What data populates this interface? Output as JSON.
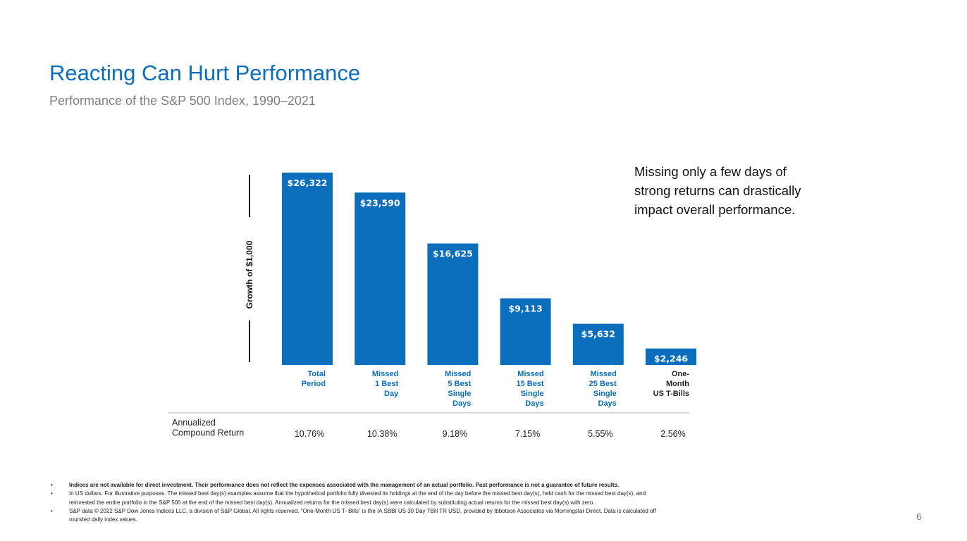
{
  "slide": {
    "title": "Reacting Can Hurt Performance",
    "subtitle": "Performance of the S&P 500 Index, 1990–2021",
    "callout": "Missing only a few days of strong returns can drastically impact overall performance.",
    "page_number": "6"
  },
  "chart_data": {
    "type": "bar",
    "title": "",
    "ylabel": "Growth of $1,000",
    "ylim": [
      0,
      27000
    ],
    "grid": false,
    "categories": [
      [
        "Total",
        "Period"
      ],
      [
        "Missed",
        "1 Best",
        "Day"
      ],
      [
        "Missed",
        "5 Best",
        "Single",
        "Days"
      ],
      [
        "Missed",
        "15 Best",
        "Single",
        "Days"
      ],
      [
        "Missed",
        "25 Best",
        "Single",
        "Days"
      ],
      [
        "One-",
        "Month",
        "US T-Bills"
      ]
    ],
    "values": [
      26322,
      23590,
      16625,
      9113,
      5632,
      2246
    ],
    "value_labels": [
      "$26,322",
      "$23,590",
      "$16,625",
      "$9,113",
      "$5,632",
      "$2,246"
    ],
    "row_label": [
      "Annualized",
      "Compound Return"
    ],
    "annualized_returns": [
      "10.76%",
      "10.38%",
      "9.18%",
      "7.15%",
      "5.55%",
      "2.56%"
    ],
    "colors": {
      "bar": "#0a6ebd",
      "bar_label": "#ffffff",
      "category_label": "#0a6ebd",
      "last_category_label": "#222222"
    }
  },
  "footnotes": [
    "Indices are not available for direct investment. Their performance does not reflect the expenses associated with the management of an actual portfolio. Past performance is not a guarantee of future results.",
    "In US dollars. For illustrative purposes. The missed best day(s) examples assume that the hypothetical portfolio fully divested its holdings at the end of the day before the missed best day(s), held cash for the missed best day(s), and reinvested the entire portfolio in the S&P 500 at the end of the missed best day(s). Annualized returns for the missed best day(s) were calculated by substituting actual returns for the missed best day(s) with zero.",
    "S&P data © 2022 S&P Dow Jones Indices LLC, a division of S&P Global. All rights reserved. “One-Month US T- Bills” is the IA SBBI US 30 Day TBill TR USD, provided by Ibbotson Associates via Morningstar Direct. Data is calculated off rounded daily index values."
  ]
}
